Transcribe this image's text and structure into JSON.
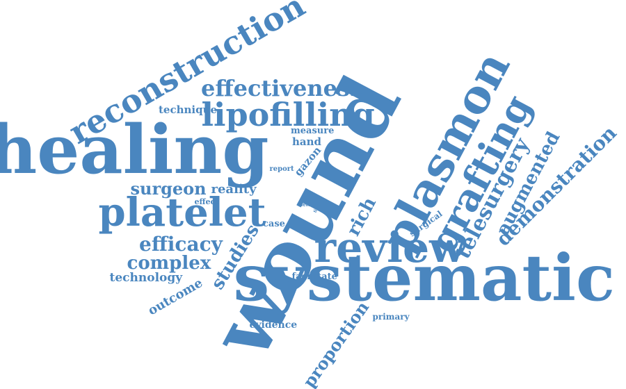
{
  "colors": {
    "word": "#4a86bf",
    "background": "#ffffff"
  },
  "cloud": {
    "words": [
      {
        "text": "wound",
        "weight": 1.0
      },
      {
        "text": "healing",
        "weight": 0.9
      },
      {
        "text": "systematic",
        "weight": 0.82
      },
      {
        "text": "review",
        "weight": 0.72
      },
      {
        "text": "plasmon",
        "weight": 0.66
      },
      {
        "text": "grafting",
        "weight": 0.58
      },
      {
        "text": "platelet",
        "weight": 0.56
      },
      {
        "text": "reconstruction",
        "weight": 0.48
      },
      {
        "text": "lipofilling",
        "weight": 0.46
      },
      {
        "text": "effectiveness",
        "weight": 0.38
      },
      {
        "text": "telesurgery",
        "weight": 0.34
      },
      {
        "text": "demonstration",
        "weight": 0.34
      },
      {
        "text": "augmented",
        "weight": 0.3
      },
      {
        "text": "efficacy",
        "weight": 0.3
      },
      {
        "text": "complex",
        "weight": 0.28
      },
      {
        "text": "studies",
        "weight": 0.28
      },
      {
        "text": "rich",
        "weight": 0.28
      },
      {
        "text": "proportion",
        "weight": 0.28
      },
      {
        "text": "surgeon",
        "weight": 0.26
      },
      {
        "text": "outcome",
        "weight": 0.2
      },
      {
        "text": "reality",
        "weight": 0.18
      },
      {
        "text": "technology",
        "weight": 0.18
      },
      {
        "text": "technique",
        "weight": 0.16
      },
      {
        "text": "gazon",
        "weight": 0.16
      },
      {
        "text": "hand",
        "weight": 0.16
      },
      {
        "text": "evidence",
        "weight": 0.14
      },
      {
        "text": "measure",
        "weight": 0.13
      },
      {
        "text": "facilitate",
        "weight": 0.13
      },
      {
        "text": "case",
        "weight": 0.13
      },
      {
        "text": "surgical",
        "weight": 0.12
      },
      {
        "text": "primary",
        "weight": 0.12
      },
      {
        "text": "effect",
        "weight": 0.11
      },
      {
        "text": "report",
        "weight": 0.1
      },
      {
        "text": "view",
        "weight": 0.07
      },
      {
        "text": "time",
        "weight": 0.06
      }
    ]
  }
}
